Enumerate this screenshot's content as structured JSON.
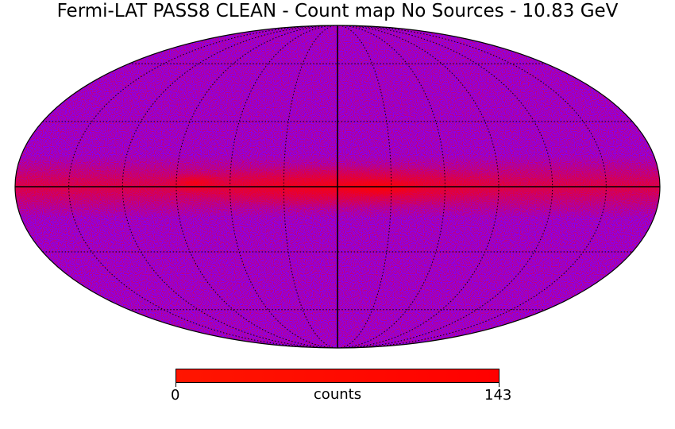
{
  "title": "Fermi-LAT PASS8 CLEAN - Count map No Sources - 10.83 GeV",
  "projection": "mollweide",
  "map": {
    "background_color": "#8000ff",
    "hot_color": "#ff0000",
    "plane_feature": "bright red band along galactic plane",
    "graticule": "dotted black"
  },
  "colorbar": {
    "min_label": "0",
    "max_label": "143",
    "unit_label": "counts",
    "colors": [
      "#ff1500",
      "#ff0000"
    ]
  }
}
